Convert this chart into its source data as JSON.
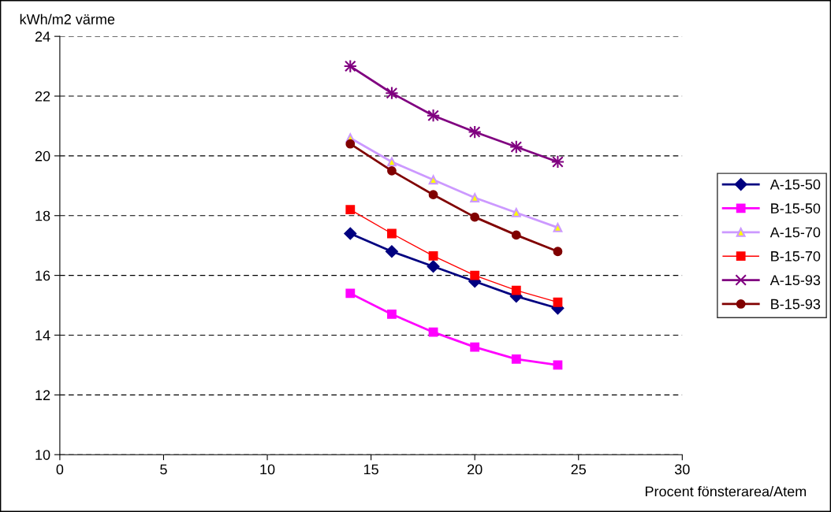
{
  "chart_data": {
    "type": "line",
    "xlabel": "Procent fönsterarea/Atem",
    "ylabel": "kWh/m2 värme",
    "x": [
      14,
      16,
      18,
      20,
      22,
      24
    ],
    "series": [
      {
        "name": "A-15-50",
        "color": "#000080",
        "marker": "diamond",
        "values": [
          17.4,
          16.8,
          16.3,
          15.8,
          15.3,
          14.9
        ]
      },
      {
        "name": "B-15-50",
        "color": "#ff00ff",
        "marker": "square",
        "values": [
          15.4,
          14.7,
          14.1,
          13.6,
          13.2,
          13.0
        ]
      },
      {
        "name": "A-15-70",
        "color": "#cc99ff",
        "marker": "triangle",
        "values": [
          20.6,
          19.8,
          19.2,
          18.6,
          18.1,
          17.6
        ]
      },
      {
        "name": "B-15-70",
        "color": "#ff0000",
        "marker": "square",
        "values": [
          18.2,
          17.4,
          16.65,
          16.0,
          15.5,
          15.1
        ]
      },
      {
        "name": "A-15-93",
        "color": "#800080",
        "marker": "cross",
        "values": [
          23.0,
          22.1,
          21.35,
          20.8,
          20.3,
          19.8
        ]
      },
      {
        "name": "B-15-93",
        "color": "#800000",
        "marker": "circle",
        "values": [
          20.4,
          19.5,
          18.7,
          17.95,
          17.35,
          16.8
        ]
      }
    ],
    "xlim": [
      0,
      30
    ],
    "xticks": [
      0,
      5,
      10,
      15,
      20,
      25,
      30
    ],
    "ylim": [
      10,
      24
    ],
    "yticks": [
      10,
      12,
      14,
      16,
      18,
      20,
      22,
      24
    ],
    "grid": "y",
    "legend": "right"
  }
}
